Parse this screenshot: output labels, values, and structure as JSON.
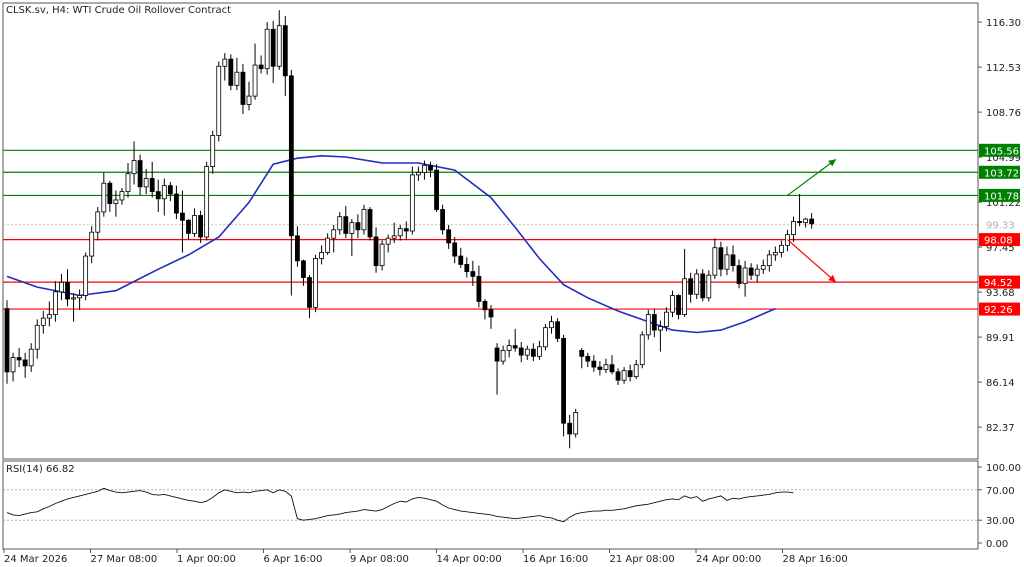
{
  "chart_data": {
    "type": "candlestick",
    "title": "CLSK.sv, H4:  WTI Crude Oil Rollover Contract",
    "x_labels": [
      "24 Mar 2026",
      "27 Mar 08:00",
      "1 Apr 00:00",
      "6 Apr 16:00",
      "9 Apr 08:00",
      "14 Apr 00:00",
      "16 Apr 16:00",
      "21 Apr 08:00",
      "24 Apr 00:00",
      "28 Apr 16:00"
    ],
    "y_ticks": [
      116.3,
      112.53,
      108.76,
      104.99,
      101.22,
      97.45,
      93.68,
      89.91,
      86.14,
      82.37
    ],
    "ylim": [
      79.7,
      117.9
    ],
    "current_price": "99.33",
    "levels": [
      {
        "label": "105.56",
        "value": 105.56,
        "kind": "resistance",
        "color": "#008000"
      },
      {
        "label": "103.72",
        "value": 103.72,
        "kind": "resistance",
        "color": "#008000"
      },
      {
        "label": "101.78",
        "value": 101.78,
        "kind": "resistance",
        "color": "#008000"
      },
      {
        "label": "98.08",
        "value": 98.08,
        "kind": "support",
        "color": "#ff0000"
      },
      {
        "label": "94.52",
        "value": 94.52,
        "kind": "support",
        "color": "#ff0000"
      },
      {
        "label": "92.26",
        "value": 92.26,
        "kind": "support",
        "color": "#ff0000"
      }
    ],
    "bull_color": "#ffffff",
    "bear_color": "#000000",
    "ma_color": "#1f2fbf",
    "candles": [
      [
        92.3,
        93.0,
        86.0,
        87.0
      ],
      [
        87.0,
        88.6,
        86.2,
        88.2
      ],
      [
        88.2,
        89.0,
        87.4,
        88.0
      ],
      [
        88.0,
        88.6,
        86.5,
        87.5
      ],
      [
        87.5,
        89.4,
        87.0,
        88.9
      ],
      [
        88.9,
        91.4,
        88.1,
        90.9
      ],
      [
        90.9,
        92.1,
        90.2,
        91.5
      ],
      [
        91.5,
        92.9,
        90.8,
        91.8
      ],
      [
        91.8,
        94.6,
        91.2,
        93.7
      ],
      [
        93.7,
        95.2,
        93.0,
        94.5
      ],
      [
        94.5,
        95.6,
        92.5,
        93.1
      ],
      [
        93.1,
        93.6,
        91.2,
        93.2
      ],
      [
        93.2,
        93.9,
        92.2,
        93.4
      ],
      [
        93.4,
        97.0,
        93.0,
        96.7
      ],
      [
        96.7,
        99.2,
        96.1,
        98.7
      ],
      [
        98.7,
        100.8,
        98.0,
        100.4
      ],
      [
        100.4,
        103.7,
        100.0,
        102.8
      ],
      [
        102.8,
        103.0,
        100.4,
        101.1
      ],
      [
        101.1,
        102.2,
        100.0,
        101.4
      ],
      [
        101.4,
        102.4,
        101.0,
        102.1
      ],
      [
        102.1,
        104.5,
        101.6,
        103.6
      ],
      [
        103.6,
        106.3,
        102.7,
        104.7
      ],
      [
        104.7,
        105.2,
        101.8,
        102.5
      ],
      [
        102.5,
        104.0,
        101.9,
        103.2
      ],
      [
        103.2,
        104.6,
        101.6,
        102.1
      ],
      [
        102.1,
        103.1,
        100.4,
        101.5
      ],
      [
        101.5,
        103.2,
        100.1,
        102.6
      ],
      [
        102.6,
        102.9,
        101.3,
        101.9
      ],
      [
        101.9,
        102.6,
        99.8,
        100.3
      ],
      [
        100.3,
        102.2,
        97.0,
        99.7
      ],
      [
        99.7,
        99.8,
        98.1,
        98.6
      ],
      [
        98.6,
        100.7,
        98.3,
        100.1
      ],
      [
        100.1,
        100.5,
        97.8,
        98.3
      ],
      [
        98.3,
        104.6,
        98.0,
        104.2
      ],
      [
        104.2,
        107.2,
        103.6,
        106.8
      ],
      [
        106.8,
        113.0,
        106.3,
        112.6
      ],
      [
        112.6,
        113.7,
        111.4,
        113.2
      ],
      [
        113.2,
        113.6,
        110.6,
        111.0
      ],
      [
        111.0,
        113.3,
        110.6,
        112.1
      ],
      [
        112.1,
        112.8,
        108.6,
        109.4
      ],
      [
        109.4,
        111.3,
        108.9,
        110.1
      ],
      [
        110.1,
        114.5,
        109.8,
        112.7
      ],
      [
        112.7,
        113.5,
        112.0,
        112.4
      ],
      [
        112.4,
        116.3,
        111.9,
        115.7
      ],
      [
        115.7,
        116.4,
        111.2,
        112.6
      ],
      [
        112.6,
        117.3,
        112.3,
        116.0
      ],
      [
        116.0,
        116.8,
        110.1,
        111.8
      ],
      [
        111.8,
        112.3,
        93.4,
        98.4
      ],
      [
        98.4,
        99.2,
        95.8,
        96.3
      ],
      [
        96.3,
        96.4,
        94.2,
        94.9
      ],
      [
        94.9,
        95.1,
        91.5,
        92.4
      ],
      [
        92.4,
        96.8,
        92.0,
        96.5
      ],
      [
        96.5,
        97.6,
        96.0,
        97.0
      ],
      [
        97.0,
        98.6,
        96.8,
        98.2
      ],
      [
        98.2,
        99.3,
        97.0,
        98.9
      ],
      [
        98.9,
        100.4,
        98.5,
        100.0
      ],
      [
        100.0,
        100.9,
        98.2,
        98.6
      ],
      [
        98.6,
        99.8,
        96.7,
        99.5
      ],
      [
        99.5,
        100.2,
        98.2,
        98.9
      ],
      [
        98.9,
        101.0,
        98.5,
        100.6
      ],
      [
        100.6,
        100.8,
        98.0,
        98.3
      ],
      [
        98.3,
        99.1,
        95.3,
        95.9
      ],
      [
        95.9,
        98.0,
        95.5,
        97.7
      ],
      [
        97.7,
        98.5,
        97.0,
        98.2
      ],
      [
        98.2,
        99.5,
        97.8,
        98.4
      ],
      [
        98.4,
        99.3,
        98.0,
        99.0
      ],
      [
        99.0,
        99.6,
        98.1,
        98.8
      ],
      [
        98.8,
        104.2,
        98.5,
        103.5
      ],
      [
        103.5,
        104.2,
        103.0,
        103.7
      ],
      [
        103.7,
        104.7,
        103.1,
        104.3
      ],
      [
        104.3,
        104.6,
        103.3,
        103.9
      ],
      [
        103.9,
        104.4,
        100.4,
        100.6
      ],
      [
        100.6,
        101.0,
        98.5,
        98.9
      ],
      [
        98.9,
        99.3,
        97.3,
        97.8
      ],
      [
        97.8,
        98.3,
        96.1,
        96.7
      ],
      [
        96.7,
        97.4,
        95.7,
        96.0
      ],
      [
        96.0,
        96.6,
        94.9,
        95.4
      ],
      [
        95.4,
        96.3,
        94.2,
        95.0
      ],
      [
        95.0,
        95.9,
        92.4,
        92.9
      ],
      [
        92.9,
        93.1,
        91.4,
        92.2
      ],
      [
        92.2,
        92.6,
        90.6,
        91.6
      ],
      [
        89.0,
        89.4,
        85.1,
        87.9
      ],
      [
        87.9,
        89.2,
        87.6,
        88.8
      ],
      [
        88.8,
        89.7,
        88.2,
        89.2
      ],
      [
        89.2,
        90.6,
        88.7,
        89.0
      ],
      [
        89.0,
        89.5,
        87.8,
        88.4
      ],
      [
        88.4,
        89.2,
        88.0,
        88.9
      ],
      [
        88.9,
        89.4,
        87.9,
        88.3
      ],
      [
        88.3,
        89.6,
        88.0,
        89.1
      ],
      [
        89.1,
        91.0,
        88.8,
        90.7
      ],
      [
        90.7,
        91.7,
        90.2,
        91.2
      ],
      [
        91.2,
        91.5,
        89.5,
        89.8
      ],
      [
        89.8,
        90.1,
        81.6,
        82.7
      ],
      [
        82.7,
        83.4,
        80.6,
        81.8
      ],
      [
        81.8,
        83.9,
        81.5,
        83.6
      ],
      [
        88.8,
        89.0,
        87.3,
        88.3
      ],
      [
        88.3,
        88.6,
        87.4,
        87.9
      ],
      [
        87.9,
        88.4,
        87.0,
        87.4
      ],
      [
        87.4,
        87.9,
        86.7,
        87.2
      ],
      [
        87.2,
        88.1,
        86.9,
        87.6
      ],
      [
        87.6,
        88.4,
        86.8,
        87.0
      ],
      [
        87.0,
        87.3,
        85.9,
        86.3
      ],
      [
        86.3,
        87.4,
        86.0,
        87.1
      ],
      [
        87.1,
        87.6,
        86.2,
        86.6
      ],
      [
        86.6,
        88.0,
        86.4,
        87.6
      ],
      [
        87.6,
        90.4,
        87.3,
        90.1
      ],
      [
        90.1,
        92.2,
        89.7,
        91.8
      ],
      [
        91.8,
        92.3,
        89.9,
        90.5
      ],
      [
        90.5,
        91.3,
        88.7,
        90.8
      ],
      [
        90.8,
        92.4,
        90.4,
        92.0
      ],
      [
        92.0,
        93.8,
        91.6,
        93.4
      ],
      [
        93.4,
        93.5,
        91.4,
        91.8
      ],
      [
        91.8,
        97.3,
        91.6,
        94.8
      ],
      [
        94.8,
        95.3,
        92.8,
        93.5
      ],
      [
        93.5,
        95.6,
        93.1,
        95.2
      ],
      [
        95.2,
        95.6,
        92.9,
        93.2
      ],
      [
        93.2,
        95.5,
        92.9,
        95.1
      ],
      [
        95.1,
        98.2,
        94.8,
        97.4
      ],
      [
        97.4,
        97.9,
        95.0,
        95.6
      ],
      [
        95.6,
        97.5,
        95.1,
        96.8
      ],
      [
        96.8,
        97.6,
        95.4,
        95.9
      ],
      [
        95.9,
        96.4,
        94.0,
        94.4
      ],
      [
        94.4,
        96.3,
        93.3,
        95.7
      ],
      [
        95.7,
        96.1,
        94.7,
        95.1
      ],
      [
        95.1,
        96.0,
        94.5,
        95.6
      ],
      [
        95.6,
        96.4,
        95.2,
        95.9
      ],
      [
        95.9,
        97.2,
        95.4,
        96.8
      ],
      [
        96.8,
        97.5,
        96.3,
        97.0
      ],
      [
        97.0,
        98.0,
        96.6,
        97.6
      ],
      [
        97.6,
        98.9,
        97.1,
        98.5
      ],
      [
        98.5,
        100.0,
        97.9,
        99.6
      ],
      [
        99.6,
        101.9,
        99.2,
        99.5
      ],
      [
        99.5,
        99.9,
        99.1,
        99.8
      ],
      [
        99.8,
        100.3,
        99.0,
        99.4
      ]
    ],
    "ma_points": [
      [
        0,
        95.0
      ],
      [
        5,
        94.1
      ],
      [
        12,
        93.4
      ],
      [
        18,
        93.8
      ],
      [
        25,
        95.6
      ],
      [
        30,
        96.8
      ],
      [
        35,
        98.3
      ],
      [
        40,
        101.2
      ],
      [
        44,
        104.4
      ],
      [
        48,
        104.9
      ],
      [
        52,
        105.1
      ],
      [
        56,
        105.0
      ],
      [
        62,
        104.5
      ],
      [
        68,
        104.5
      ],
      [
        74,
        103.9
      ],
      [
        80,
        101.6
      ],
      [
        84,
        99.1
      ],
      [
        88,
        96.5
      ],
      [
        92,
        94.3
      ],
      [
        96,
        93.2
      ],
      [
        101,
        92.1
      ],
      [
        106,
        91.2
      ],
      [
        110,
        90.5
      ],
      [
        114,
        90.3
      ],
      [
        118,
        90.5
      ],
      [
        122,
        91.2
      ],
      [
        127,
        92.3
      ]
    ],
    "arrows": [
      {
        "from": [
          129,
          101.78
        ],
        "to": [
          137,
          104.8
        ],
        "color": "#008000"
      },
      {
        "from": [
          129,
          98.08
        ],
        "to": [
          137,
          94.52
        ],
        "color": "#ff0000"
      }
    ],
    "rsi": {
      "label": "RSI(14) 66.82",
      "ticks": [
        100,
        70,
        30,
        0
      ],
      "tick_labels": [
        "100.00",
        "70.00",
        "30.00",
        "0.00"
      ],
      "levels": [
        70,
        30
      ],
      "values": [
        40,
        37,
        36,
        38,
        40,
        41,
        45,
        48,
        52,
        55,
        58,
        60,
        62,
        64,
        66,
        68,
        72,
        69,
        67,
        66,
        67,
        68,
        69,
        67,
        64,
        63,
        64,
        62,
        60,
        58,
        56,
        55,
        53,
        55,
        60,
        66,
        70,
        68,
        66,
        67,
        66,
        68,
        69,
        70,
        66,
        70,
        68,
        62,
        32,
        30,
        31,
        32,
        34,
        36,
        37,
        38,
        40,
        41,
        42,
        44,
        43,
        42,
        44,
        48,
        52,
        55,
        54,
        58,
        60,
        59,
        57,
        55,
        50,
        46,
        44,
        42,
        41,
        40,
        39,
        38,
        37,
        35,
        34,
        33,
        32,
        33,
        34,
        35,
        36,
        34,
        33,
        30,
        28,
        34,
        38,
        40,
        41,
        42,
        42,
        43,
        43,
        44,
        45,
        47,
        49,
        50,
        51,
        53,
        55,
        57,
        58,
        57,
        62,
        59,
        61,
        55,
        58,
        60,
        62,
        56,
        59,
        58,
        60,
        61,
        62,
        63,
        64,
        66,
        67,
        67,
        66
      ]
    }
  }
}
